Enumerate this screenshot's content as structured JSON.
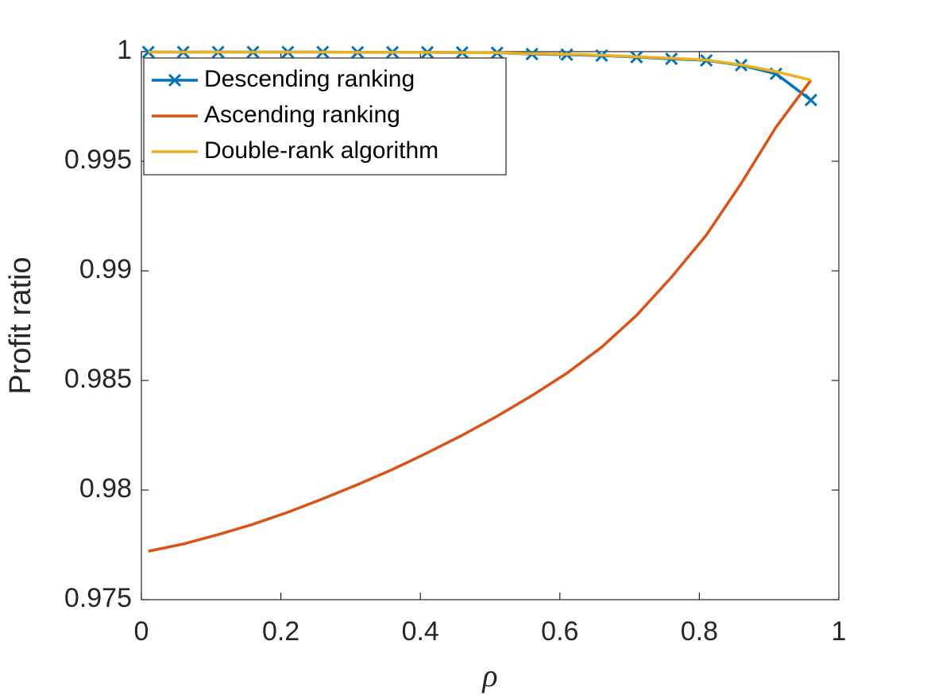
{
  "chart_data": {
    "type": "line",
    "xlabel": "ρ",
    "ylabel": "Profit ratio",
    "x": [
      0.01,
      0.06,
      0.11,
      0.16,
      0.21,
      0.26,
      0.31,
      0.36,
      0.41,
      0.46,
      0.51,
      0.56,
      0.61,
      0.66,
      0.71,
      0.76,
      0.81,
      0.86,
      0.91,
      0.96
    ],
    "series": [
      {
        "name": "Descending ranking",
        "color": "#0072bd",
        "marker": "x",
        "values": [
          0.99998,
          0.99998,
          0.99998,
          0.99998,
          0.99998,
          0.99998,
          0.99997,
          0.99997,
          0.99997,
          0.99996,
          0.99995,
          0.99989,
          0.99986,
          0.99982,
          0.99975,
          0.99967,
          0.9996,
          0.99938,
          0.99899,
          0.99779
        ]
      },
      {
        "name": "Ascending ranking",
        "color": "#d95319",
        "values": [
          0.97721,
          0.97754,
          0.97797,
          0.97844,
          0.97899,
          0.9796,
          0.98025,
          0.98094,
          0.9817,
          0.9825,
          0.98337,
          0.98431,
          0.98533,
          0.98652,
          0.98797,
          0.98971,
          0.99163,
          0.99399,
          0.99656,
          0.9987
        ]
      },
      {
        "name": "Double-rank algorithm",
        "color": "#edb120",
        "values": [
          0.99998,
          0.99998,
          0.99998,
          0.99998,
          0.99998,
          0.99998,
          0.99997,
          0.99997,
          0.99997,
          0.99996,
          0.99995,
          0.99991,
          0.99988,
          0.99984,
          0.99977,
          0.9997,
          0.99962,
          0.9994,
          0.99909,
          0.9987
        ]
      }
    ],
    "xlim": [
      0,
      1
    ],
    "xticks": [
      0,
      0.2,
      0.4,
      0.6,
      0.8,
      1
    ],
    "ylim": [
      0.975,
      1
    ],
    "yticks": [
      0.975,
      0.98,
      0.985,
      0.99,
      0.995,
      1
    ],
    "grid": false,
    "legend": "northwest"
  }
}
